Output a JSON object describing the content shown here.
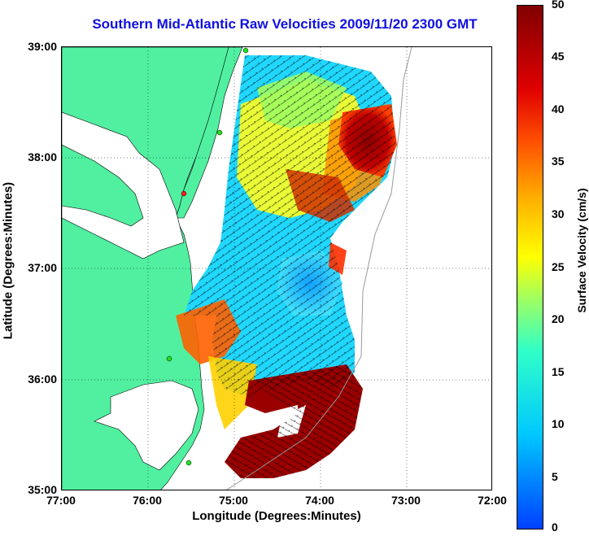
{
  "title": "Southern Mid-Atlantic Raw Velocities 2009/11/20 2300 GMT",
  "xaxis": {
    "label": "Longitude (Degrees:Minutes)",
    "ticks": [
      "77:00",
      "76:00",
      "75:00",
      "74:00",
      "73:00",
      "72:00"
    ]
  },
  "yaxis": {
    "label": "Latitude (Degrees:Minutes)",
    "ticks": [
      "39:00",
      "38:00",
      "37:00",
      "36:00",
      "35:00"
    ]
  },
  "colorbar": {
    "label": "Surface Velocity (cm/s)",
    "ticks": [
      "50",
      "45",
      "40",
      "35",
      "30",
      "25",
      "20",
      "15",
      "10",
      "5",
      "0"
    ]
  },
  "colors": {
    "land": "#50f0a0",
    "title": "#1010e0",
    "station": "#20e020",
    "station_alt": "#ff2020"
  }
}
